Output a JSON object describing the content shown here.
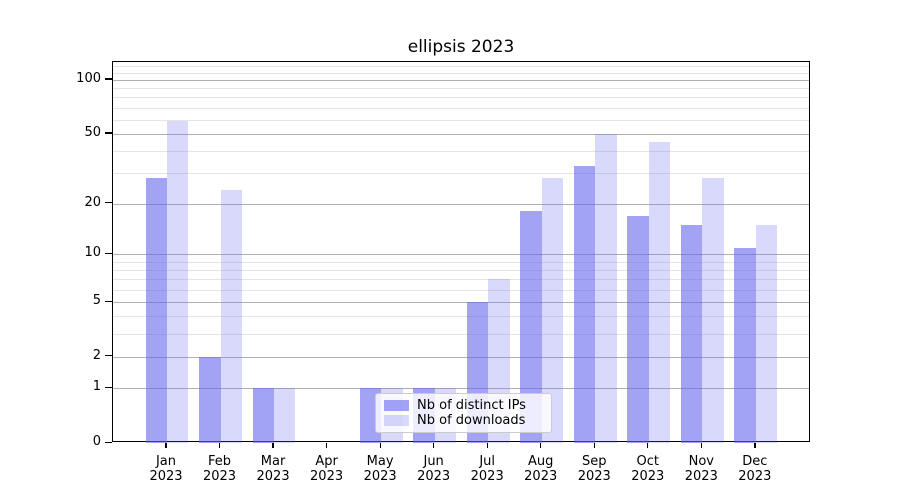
{
  "chart_data": {
    "type": "bar",
    "title": "ellipsis 2023",
    "categories": [
      "Jan",
      "Feb",
      "Mar",
      "Apr",
      "May",
      "Jun",
      "Jul",
      "Aug",
      "Sep",
      "Oct",
      "Nov",
      "Dec"
    ],
    "category_year": "2023",
    "series": [
      {
        "name": "Nb of distinct IPs",
        "color": "rgba(102,102,238,0.6)",
        "values": [
          28,
          2,
          1,
          0,
          1,
          1,
          5,
          18,
          33,
          17,
          15,
          11
        ]
      },
      {
        "name": "Nb of downloads",
        "color": "rgba(102,102,238,0.25)",
        "values": [
          59,
          24,
          1,
          0,
          1,
          1,
          7,
          28,
          50,
          45,
          28,
          15
        ]
      }
    ],
    "yscale": "log1p",
    "y_ticks": [
      100,
      50,
      20,
      10,
      5,
      2,
      1,
      0
    ],
    "y_minor_gridlines": [
      3,
      4,
      6,
      7,
      8,
      9,
      30,
      40,
      60,
      70,
      80,
      90,
      110,
      120
    ],
    "ylim": [
      0,
      125
    ],
    "grid": true,
    "legend_position": "lower center",
    "colors": {
      "bar_base": "#6666ee",
      "major_grid": "#b0b0b0",
      "minor_grid": "#e4e4e4",
      "axis": "#000000"
    }
  }
}
